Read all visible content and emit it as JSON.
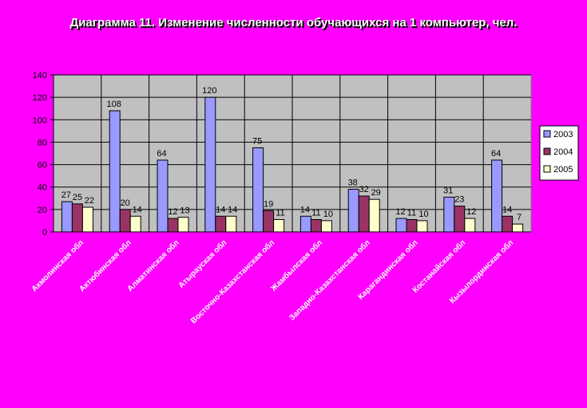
{
  "chart_data": {
    "type": "bar",
    "title": "Диаграмма 11. Изменение численности обучающихся на 1 компьютер, чел.",
    "categories": [
      "Акмолинская обл",
      "Актюбинская обл",
      "Алматинская обл",
      "Атырауская обл",
      "Восточно-Казахстанская обл",
      "Жамбылская обл",
      "Западно-Казахстанская обл",
      "Карагандинская обл",
      "Костанайская обл",
      "Кызылординская обл"
    ],
    "series": [
      {
        "name": "2003",
        "color": "#9999ff",
        "values": [
          27,
          108,
          64,
          120,
          75,
          14,
          38,
          12,
          31,
          64
        ]
      },
      {
        "name": "2004",
        "color": "#993366",
        "values": [
          25,
          20,
          12,
          14,
          19,
          11,
          32,
          11,
          23,
          14
        ]
      },
      {
        "name": "2005",
        "color": "#ffffcc",
        "values": [
          22,
          14,
          13,
          14,
          11,
          10,
          29,
          10,
          12,
          7
        ]
      }
    ],
    "ylim": [
      0,
      140
    ],
    "yticks": [
      0,
      20,
      40,
      60,
      80,
      100,
      120,
      140
    ],
    "xlabel": "",
    "ylabel": "",
    "grid": true,
    "legend": "right",
    "plot_background": "#c0c0c0"
  }
}
